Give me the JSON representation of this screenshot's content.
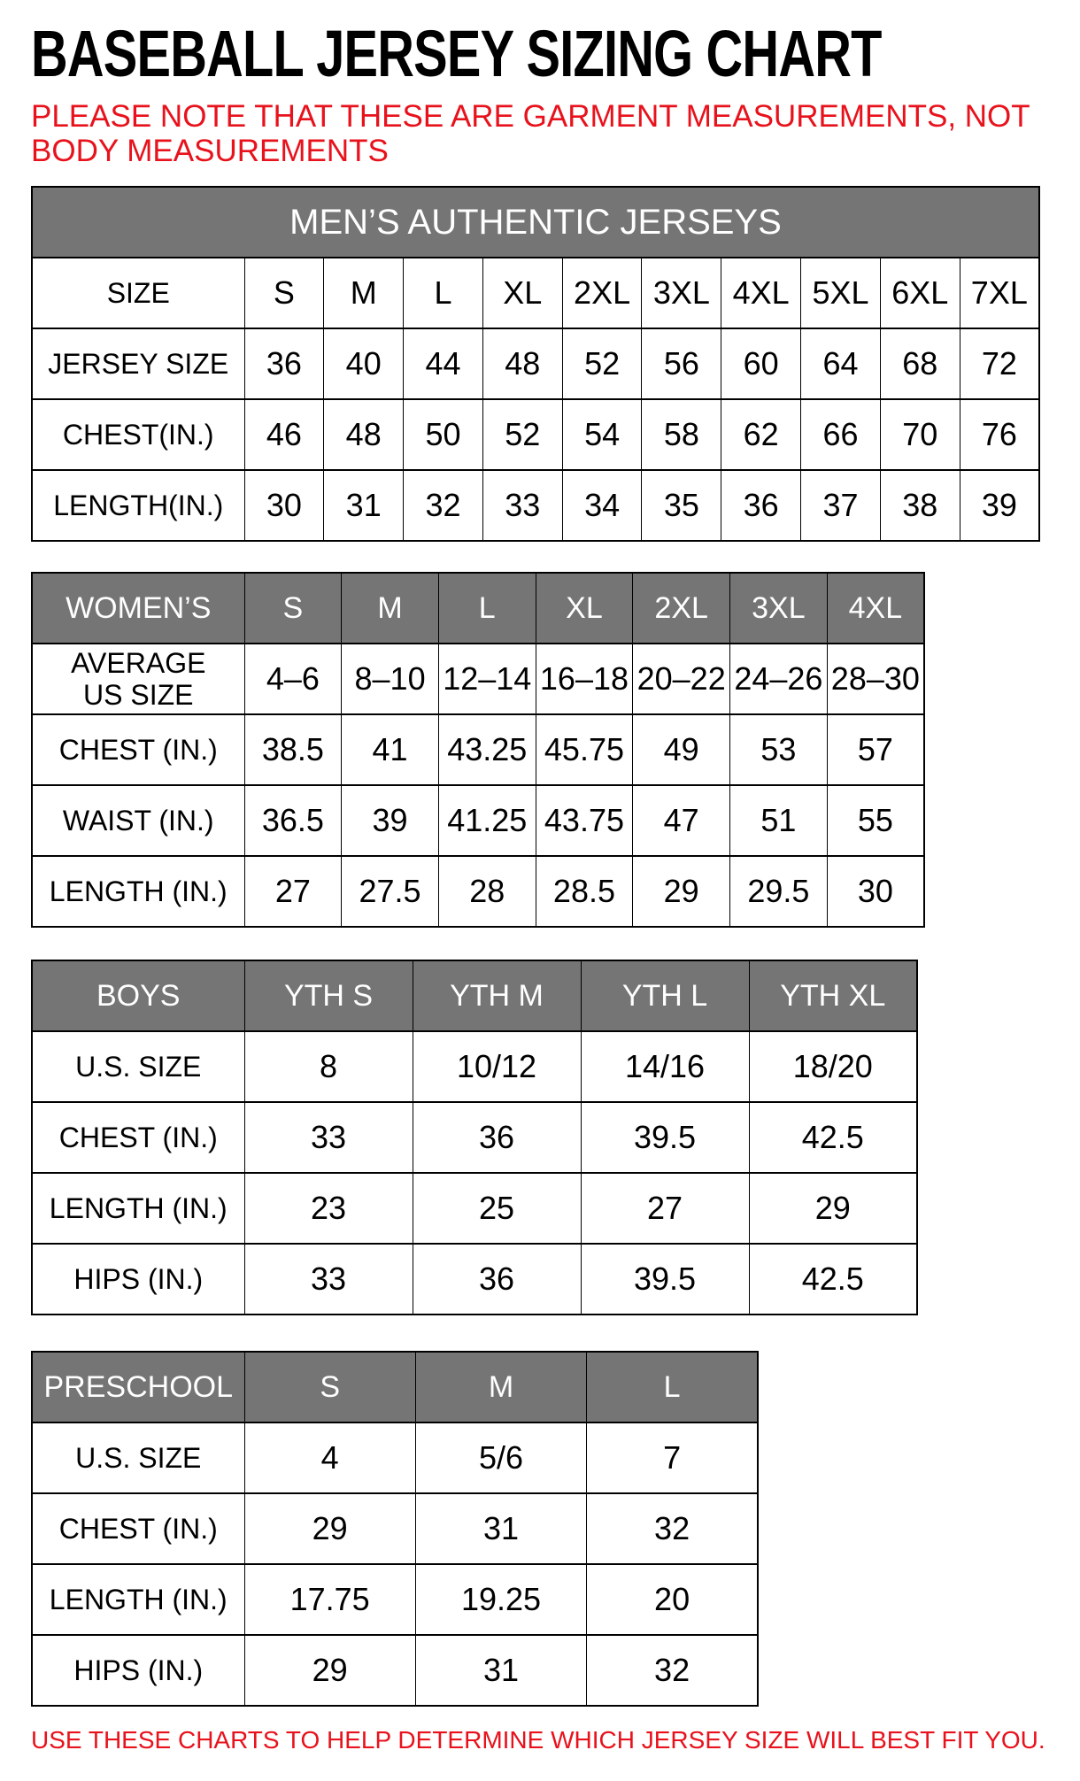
{
  "page": {
    "title": "BASEBALL JERSEY SIZING CHART",
    "note": "PLEASE NOTE THAT THESE ARE GARMENT MEASUREMENTS, NOT BODY MEASUREMENTS",
    "footer": "USE THESE CHARTS TO HELP DETERMINE WHICH JERSEY SIZE WILL BEST FIT YOU.",
    "colors": {
      "accent_red": "#e8121c",
      "header_gray": "#757575",
      "header_text": "#ffffff",
      "border_black": "#000000"
    }
  },
  "chart_data": [
    {
      "type": "table",
      "id": "mens",
      "banner": "MEN’S AUTHENTIC JERSEYS",
      "rows": [
        {
          "label": "SIZE",
          "values": [
            "S",
            "M",
            "L",
            "XL",
            "2XL",
            "3XL",
            "4XL",
            "5XL",
            "6XL",
            "7XL"
          ]
        },
        {
          "label": "JERSEY SIZE",
          "values": [
            "36",
            "40",
            "44",
            "48",
            "52",
            "56",
            "60",
            "64",
            "68",
            "72"
          ]
        },
        {
          "label": "CHEST(IN.)",
          "values": [
            "46",
            "48",
            "50",
            "52",
            "54",
            "58",
            "62",
            "66",
            "70",
            "76"
          ]
        },
        {
          "label": "LENGTH(IN.)",
          "values": [
            "30",
            "31",
            "32",
            "33",
            "34",
            "35",
            "36",
            "37",
            "38",
            "39"
          ]
        }
      ]
    },
    {
      "type": "table",
      "id": "womens",
      "header": {
        "label": "WOMEN’S",
        "values": [
          "S",
          "M",
          "L",
          "XL",
          "2XL",
          "3XL",
          "4XL"
        ]
      },
      "rows": [
        {
          "label": "AVERAGE\nUS SIZE",
          "values": [
            "4–6",
            "8–10",
            "12–14",
            "16–18",
            "20–22",
            "24–26",
            "28–30"
          ]
        },
        {
          "label": "CHEST (IN.)",
          "values": [
            "38.5",
            "41",
            "43.25",
            "45.75",
            "49",
            "53",
            "57"
          ]
        },
        {
          "label": "WAIST (IN.)",
          "values": [
            "36.5",
            "39",
            "41.25",
            "43.75",
            "47",
            "51",
            "55"
          ]
        },
        {
          "label": "LENGTH (IN.)",
          "values": [
            "27",
            "27.5",
            "28",
            "28.5",
            "29",
            "29.5",
            "30"
          ]
        }
      ]
    },
    {
      "type": "table",
      "id": "boys",
      "header": {
        "label": "BOYS",
        "values": [
          "YTH S",
          "YTH M",
          "YTH L",
          "YTH XL"
        ]
      },
      "rows": [
        {
          "label": "U.S. SIZE",
          "values": [
            "8",
            "10/12",
            "14/16",
            "18/20"
          ]
        },
        {
          "label": "CHEST (IN.)",
          "values": [
            "33",
            "36",
            "39.5",
            "42.5"
          ]
        },
        {
          "label": "LENGTH (IN.)",
          "values": [
            "23",
            "25",
            "27",
            "29"
          ]
        },
        {
          "label": "HIPS (IN.)",
          "values": [
            "33",
            "36",
            "39.5",
            "42.5"
          ]
        }
      ]
    },
    {
      "type": "table",
      "id": "preschool",
      "header": {
        "label": "PRESCHOOL",
        "values": [
          "S",
          "M",
          "L"
        ]
      },
      "rows": [
        {
          "label": "U.S. SIZE",
          "values": [
            "4",
            "5/6",
            "7"
          ]
        },
        {
          "label": "CHEST (IN.)",
          "values": [
            "29",
            "31",
            "32"
          ]
        },
        {
          "label": "LENGTH (IN.)",
          "values": [
            "17.75",
            "19.25",
            "20"
          ]
        },
        {
          "label": "HIPS (IN.)",
          "values": [
            "29",
            "31",
            "32"
          ]
        }
      ]
    }
  ]
}
